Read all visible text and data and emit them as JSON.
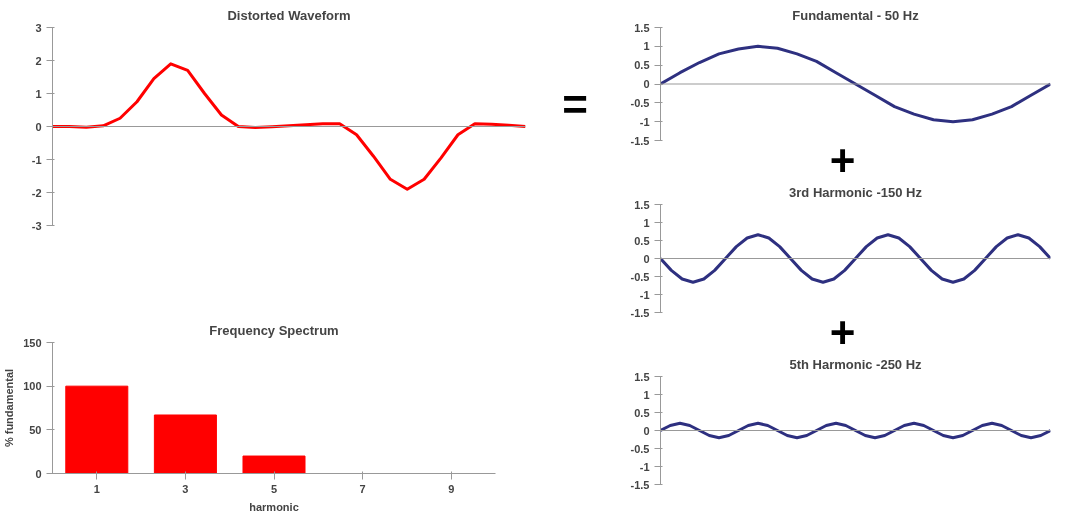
{
  "chart_data": [
    {
      "type": "line",
      "title": "Distorted Waveform",
      "annotations": [
        "="
      ],
      "categories": [
        null,
        null,
        null,
        null,
        null,
        null,
        null,
        null,
        null,
        null,
        null,
        null,
        null,
        null,
        null,
        null,
        null,
        null,
        null,
        null,
        null,
        null,
        null,
        null,
        null,
        null,
        null,
        null,
        null
      ],
      "series": [
        {
          "color": "#ff0000",
          "values": [
            0,
            0,
            -0.02,
            0.02,
            0.25,
            0.75,
            1.45,
            1.9,
            1.7,
            1.0,
            0.35,
            0,
            -0.03,
            -0.01,
            0.02,
            0.05,
            0.08,
            0.08,
            -0.25,
            -0.9,
            -1.6,
            -1.9,
            -1.6,
            -0.95,
            -0.25,
            0.08,
            0.07,
            0.04,
            0
          ]
        }
      ],
      "ylim": [
        -3,
        3
      ],
      "yticks": [
        -3,
        -2,
        -1,
        0,
        1,
        2,
        3
      ],
      "ref_lines": [
        {
          "axis": "y",
          "value": 0
        }
      ],
      "tick_labels": "y",
      "grid": false
    },
    {
      "type": "bar",
      "title": "Frequency Spectrum",
      "xlabel": "harmonic",
      "ylabel": "% fundamental",
      "categories": [
        "1",
        "3",
        "5",
        "7",
        "9"
      ],
      "series": [
        {
          "color": "#ff0000",
          "values": [
            100,
            67,
            20,
            0,
            0
          ]
        }
      ],
      "ylim": [
        0,
        150
      ],
      "yticks": [
        0,
        50,
        100,
        150
      ],
      "grid": false
    },
    {
      "type": "line",
      "title": "Fundamental - 50 Hz",
      "categories": [
        null,
        null,
        null,
        null,
        null,
        null,
        null,
        null,
        null,
        null,
        null,
        null,
        null,
        null,
        null,
        null,
        null,
        null,
        null,
        null,
        null
      ],
      "series": [
        {
          "color": "#2e3080",
          "values": [
            0,
            0.3,
            0.57,
            0.8,
            0.93,
            1,
            0.95,
            0.8,
            0.6,
            0.3,
            0,
            -0.3,
            -0.6,
            -0.8,
            -0.95,
            -1,
            -0.95,
            -0.8,
            -0.6,
            -0.3,
            0
          ]
        }
      ],
      "ylim": [
        -1.5,
        1.5
      ],
      "yticks": [
        -1.5,
        -1,
        -0.5,
        0,
        0.5,
        1,
        1.5
      ],
      "ref_lines": [
        {
          "axis": "y",
          "value": 0
        }
      ],
      "tick_labels": "y",
      "grid": false
    },
    {
      "type": "line",
      "title": "3rd Harmonic -150 Hz",
      "annotations": [
        "+"
      ],
      "categories": [
        null,
        null,
        null,
        null,
        null,
        null,
        null,
        null,
        null,
        null,
        null,
        null,
        null,
        null,
        null,
        null,
        null,
        null,
        null,
        null,
        null,
        null,
        null,
        null,
        null,
        null,
        null,
        null,
        null,
        null,
        null,
        null,
        null,
        null,
        null,
        null,
        null
      ],
      "series": [
        {
          "color": "#2e3080",
          "values": [
            0,
            -0.33,
            -0.57,
            -0.66,
            -0.57,
            -0.33,
            0,
            0.33,
            0.57,
            0.66,
            0.57,
            0.33,
            0,
            -0.33,
            -0.57,
            -0.66,
            -0.57,
            -0.33,
            0,
            0.33,
            0.57,
            0.66,
            0.57,
            0.33,
            0,
            -0.33,
            -0.57,
            -0.66,
            -0.57,
            -0.33,
            0,
            0.33,
            0.57,
            0.66,
            0.57,
            0.33,
            0
          ]
        }
      ],
      "ylim": [
        -1.5,
        1.5
      ],
      "yticks": [
        -1.5,
        -1,
        -0.5,
        0,
        0.5,
        1,
        1.5
      ],
      "ref_lines": [
        {
          "axis": "y",
          "value": 0
        }
      ],
      "tick_labels": "y",
      "grid": false
    },
    {
      "type": "line",
      "title": "5th Harmonic -250 Hz",
      "annotations": [
        "+"
      ],
      "categories": [
        null,
        null,
        null,
        null,
        null,
        null,
        null,
        null,
        null,
        null,
        null,
        null,
        null,
        null,
        null,
        null,
        null,
        null,
        null,
        null,
        null,
        null,
        null,
        null,
        null,
        null,
        null,
        null,
        null,
        null,
        null,
        null,
        null,
        null,
        null,
        null,
        null,
        null,
        null,
        null,
        null
      ],
      "series": [
        {
          "color": "#2e3080",
          "values": [
            0,
            0.14,
            0.2,
            0.14,
            0,
            -0.14,
            -0.2,
            -0.14,
            0,
            0.14,
            0.2,
            0.14,
            0,
            -0.14,
            -0.2,
            -0.14,
            0,
            0.14,
            0.2,
            0.14,
            0,
            -0.14,
            -0.2,
            -0.14,
            0,
            0.14,
            0.2,
            0.14,
            0,
            -0.14,
            -0.2,
            -0.14,
            0,
            0.14,
            0.2,
            0.14,
            0,
            -0.14,
            -0.2,
            -0.14,
            0
          ]
        }
      ],
      "ylim": [
        -1.5,
        1.5
      ],
      "yticks": [
        -1.5,
        -1,
        -0.5,
        0,
        0.5,
        1,
        1.5
      ],
      "ref_lines": [
        {
          "axis": "y",
          "value": 0
        }
      ],
      "tick_labels": "y",
      "grid": false
    }
  ]
}
